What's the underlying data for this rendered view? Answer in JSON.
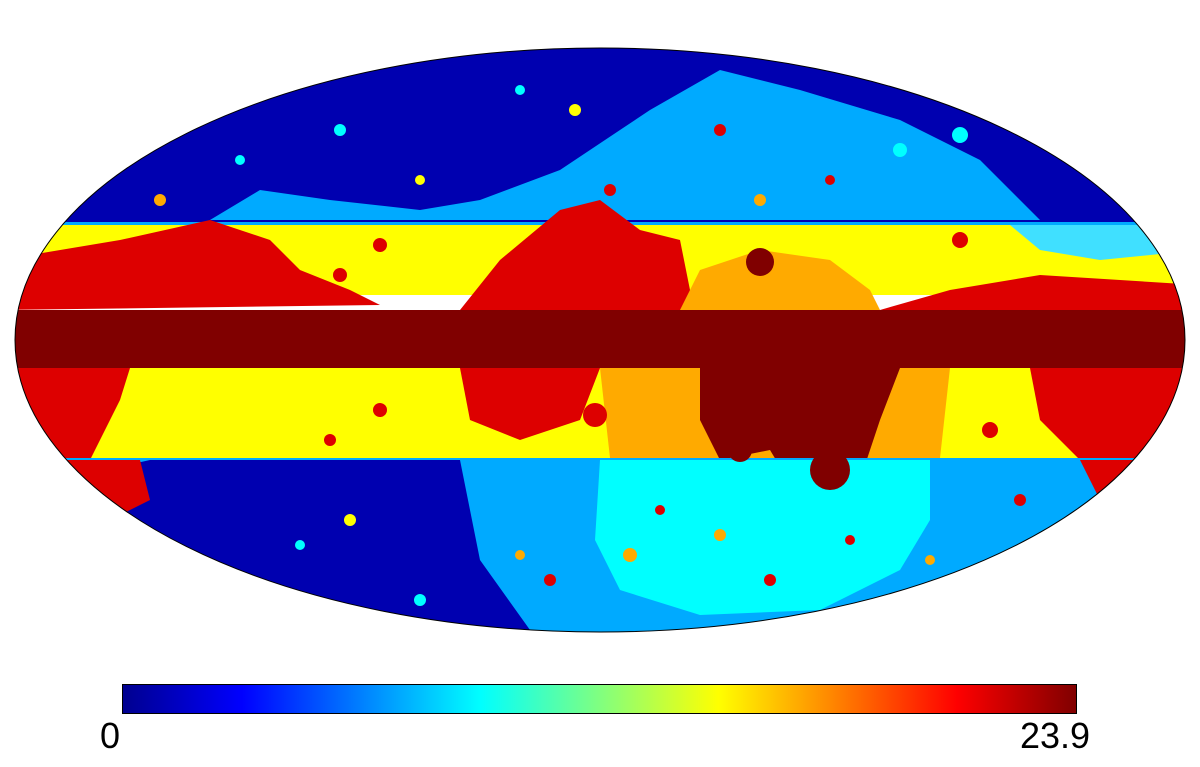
{
  "colorbar": {
    "min_label": "0",
    "max_label": "23.9",
    "colormap": "jet",
    "colors": [
      "#00008f",
      "#0000ff",
      "#0080ff",
      "#00ffff",
      "#80ff80",
      "#ffff00",
      "#ff8000",
      "#ff0000",
      "#800000"
    ]
  },
  "map": {
    "projection": "mollweide",
    "palette": {
      "dark_blue": "#0000b0",
      "light_blue": "#00aaff",
      "cyan": "#00ffff",
      "yellow": "#ffff00",
      "orange": "#ffaa00",
      "red": "#dd0000",
      "dark_red": "#800000"
    }
  }
}
